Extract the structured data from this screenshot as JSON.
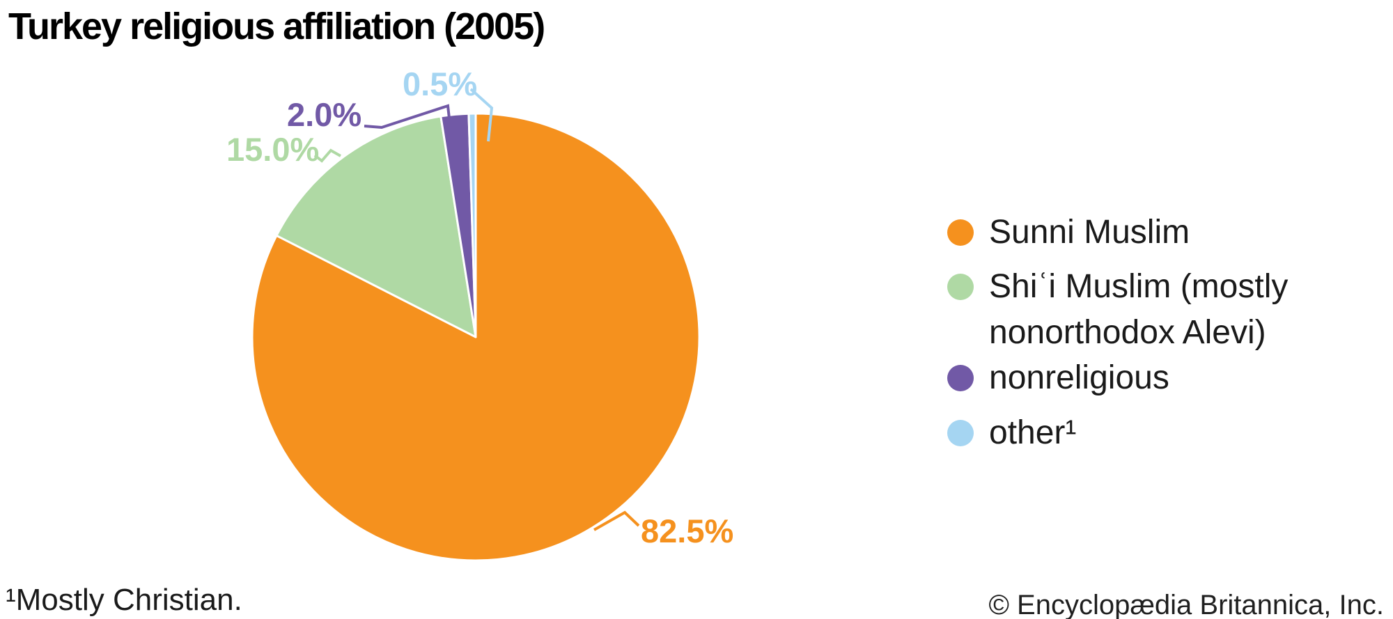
{
  "title": "Turkey religious affiliation (2005)",
  "footnote": "¹Mostly Christian.",
  "copyright": "© Encyclopædia Britannica, Inc.",
  "chart_data": {
    "type": "pie",
    "title": "Turkey religious affiliation (2005)",
    "categories": [
      "Sunni Muslim",
      "Shiʿi Muslim (mostly nonorthodox Alevi)",
      "nonreligious",
      "other¹"
    ],
    "values": [
      82.5,
      15.0,
      2.0,
      0.5
    ],
    "unit": "%",
    "slice_labels": [
      "82.5%",
      "15.0%",
      "2.0%",
      "0.5%"
    ],
    "colors": [
      "#F5911E",
      "#AFD9A4",
      "#7159A6",
      "#A5D5F2"
    ],
    "start_angle_deg": 0,
    "direction": "clockwise",
    "legend_position": "right",
    "slice_border_color": "#FFFFFF",
    "footnote": "¹Mostly Christian."
  }
}
